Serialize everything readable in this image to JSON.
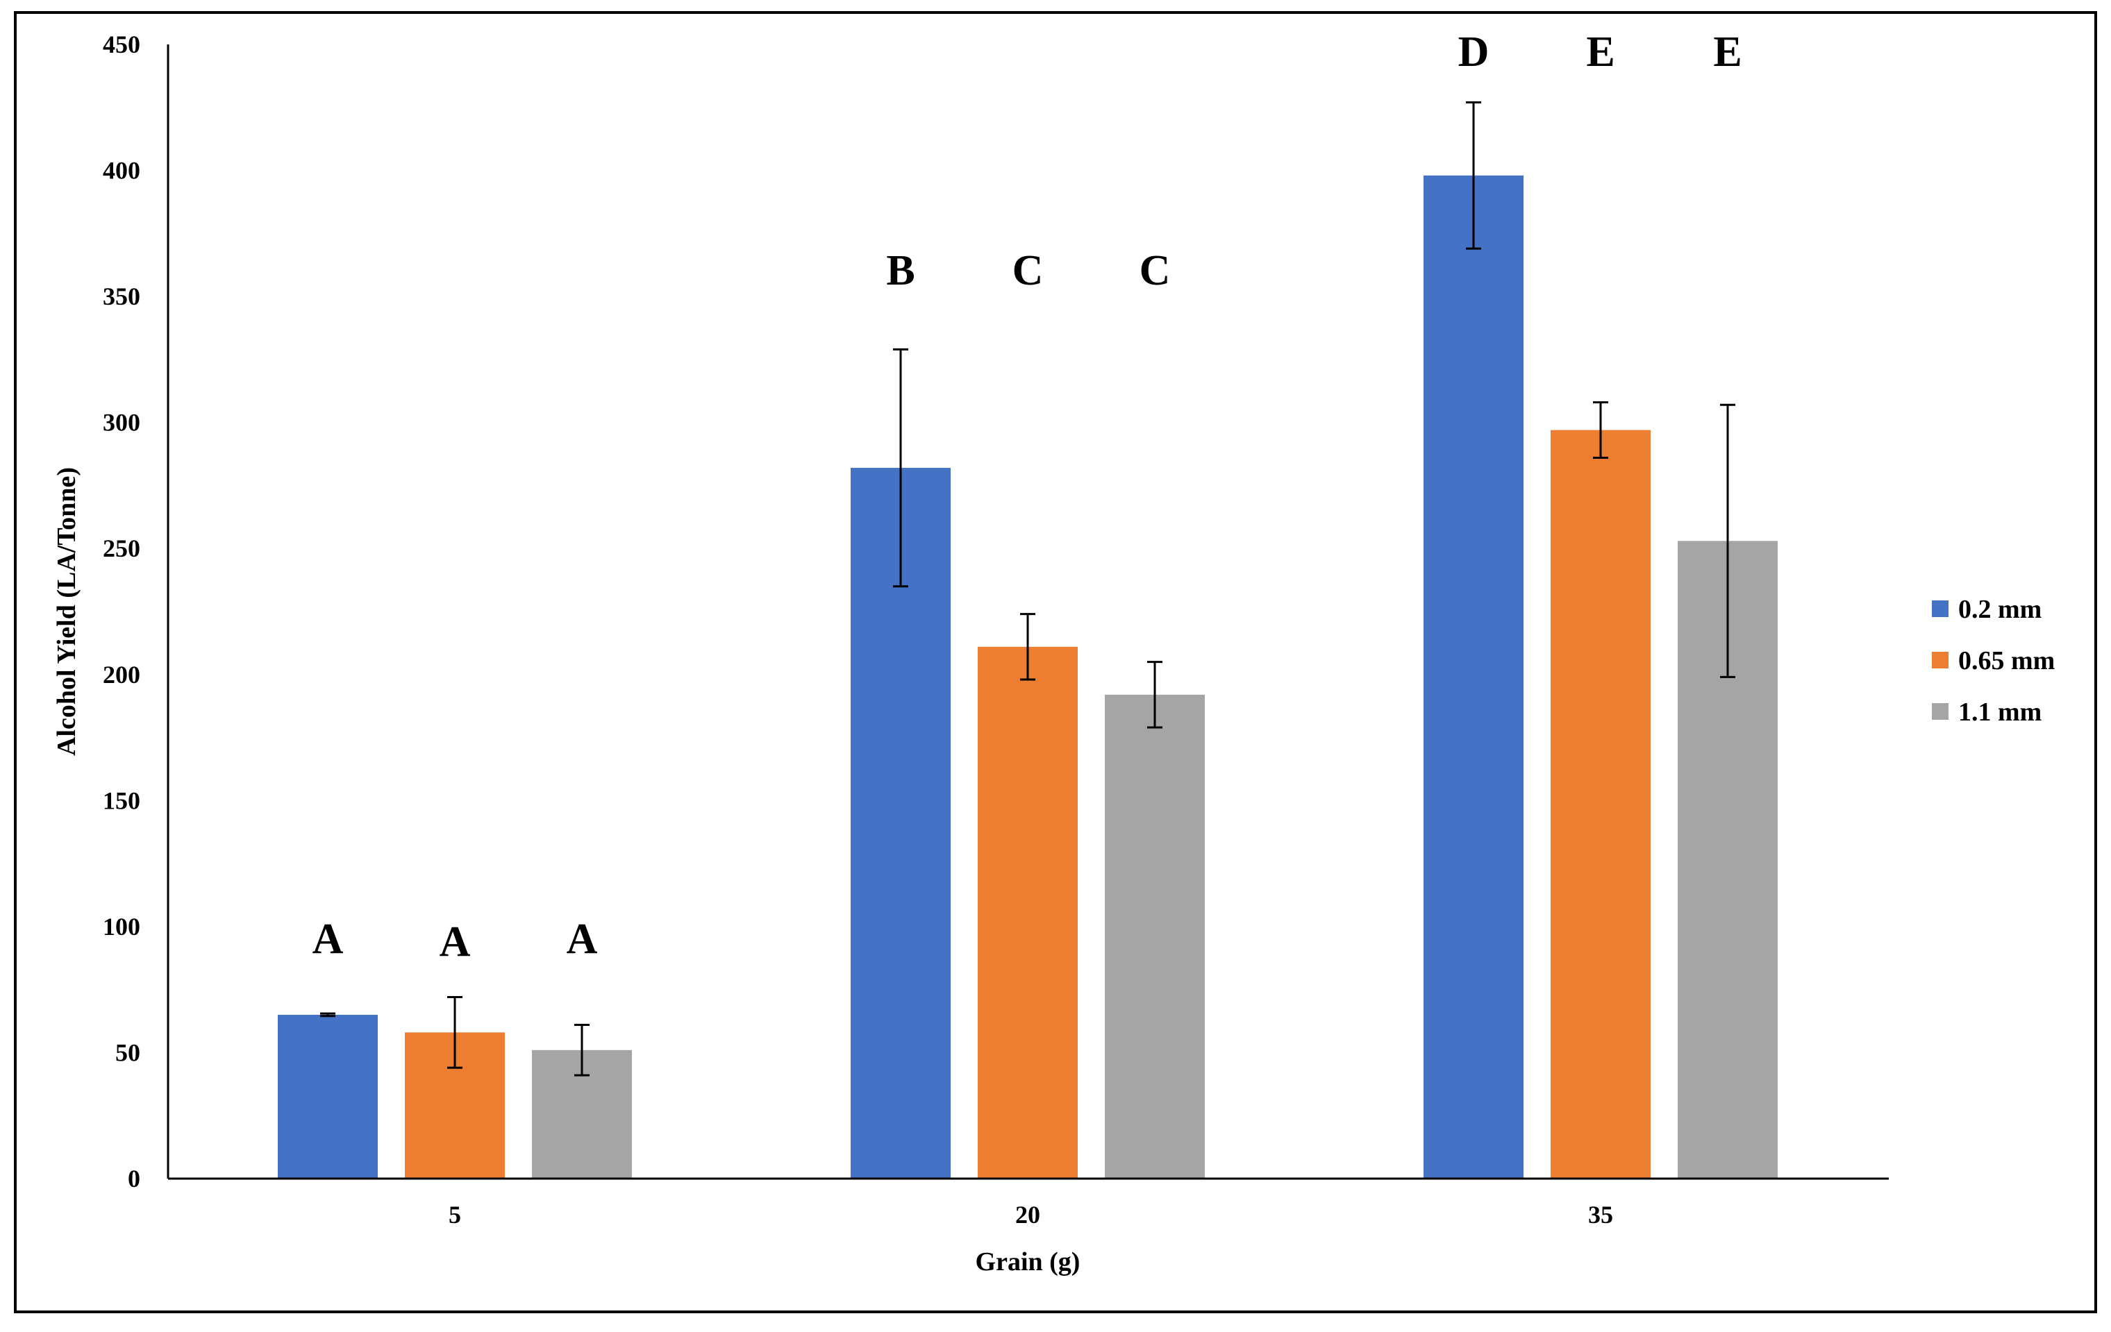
{
  "chart_data": {
    "type": "bar",
    "title": "",
    "xlabel": "Grain (g)",
    "ylabel": "Alcohol Yield  (LA/Tonne)",
    "ylim": [
      0,
      450
    ],
    "yticks": [
      0,
      50,
      100,
      150,
      200,
      250,
      300,
      350,
      400,
      450
    ],
    "categories": [
      "5",
      "20",
      "35"
    ],
    "series": [
      {
        "name": "0.2 mm",
        "color": "#4472C4",
        "values": [
          65,
          282,
          398
        ],
        "errors": [
          0.5,
          47,
          29
        ],
        "letters": [
          "A",
          "B",
          "D"
        ]
      },
      {
        "name": "0.65 mm",
        "color": "#ED7D31",
        "values": [
          58,
          211,
          297
        ],
        "errors": [
          14,
          13,
          11
        ],
        "letters": [
          "A",
          "C",
          "E"
        ]
      },
      {
        "name": "1.1 mm",
        "color": "#A5A5A5",
        "values": [
          51,
          192,
          253
        ],
        "errors": [
          10,
          13,
          54
        ],
        "letters": [
          "A",
          "C",
          "E"
        ]
      }
    ],
    "legend": "right",
    "grid": false
  }
}
